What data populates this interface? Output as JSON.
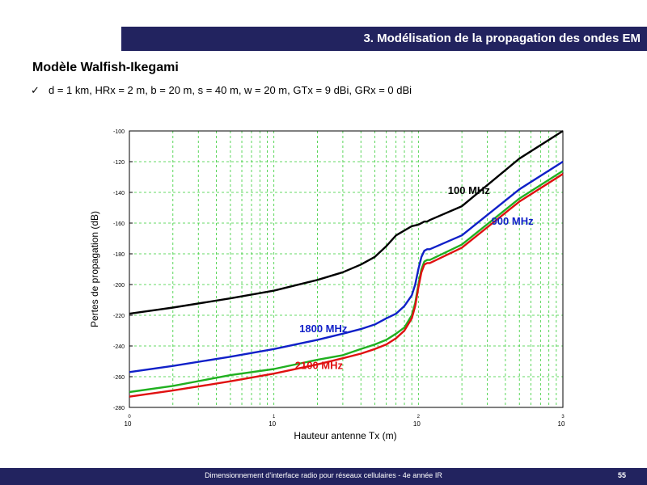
{
  "header": {
    "title": "3. Modélisation de la propagation des ondes EM"
  },
  "section": {
    "title": "Modèle Walfish-Ikegami",
    "bullet": "d = 1 km, HRx = 2 m, b = 20 m, s = 40 m, w = 20 m, GTx = 9 dBi, GRx = 0 dBi"
  },
  "footer": {
    "text": "Dimensionnement d’interface radio pour réseaux cellulaires - 4e année IR",
    "page": "55"
  },
  "chart_data": {
    "type": "line",
    "xlabel": "Hauteur antenne Tx (m)",
    "ylabel": "Pertes de propagation (dB)",
    "xscale": "log",
    "xlim": [
      1,
      1000
    ],
    "ylim": [
      -280,
      -100
    ],
    "grid": true,
    "x_ticks": [
      {
        "value": 1,
        "base": "10",
        "exp": "0"
      },
      {
        "value": 10,
        "base": "10",
        "exp": "1"
      },
      {
        "value": 100,
        "base": "10",
        "exp": "2"
      },
      {
        "value": 1000,
        "base": "10",
        "exp": "3"
      }
    ],
    "y_ticks": [
      -100,
      -120,
      -140,
      -160,
      -180,
      -200,
      -220,
      -240,
      -260,
      -280
    ],
    "series": [
      {
        "name": "100 MHz",
        "color": "#000000",
        "x": [
          1,
          2,
          5,
          10,
          20,
          30,
          40,
          50,
          60,
          70,
          90,
          100,
          105,
          110,
          115,
          120,
          200,
          500,
          1000
        ],
        "y": [
          -219,
          -215,
          -209,
          -204,
          -197,
          -192,
          -187,
          -182,
          -175,
          -168,
          -162,
          -161,
          -160,
          -159,
          -159,
          -158,
          -149,
          -118,
          -100
        ]
      },
      {
        "name": "900 MHz",
        "color": "#1020c8",
        "x": [
          1,
          2,
          5,
          10,
          20,
          30,
          40,
          50,
          60,
          70,
          80,
          90,
          95,
          100,
          105,
          110,
          115,
          120,
          200,
          500,
          1000
        ],
        "y": [
          -257,
          -253,
          -247,
          -242,
          -236,
          -232,
          -229,
          -226,
          -222,
          -219,
          -214,
          -207,
          -200,
          -190,
          -182,
          -178,
          -177,
          -177,
          -168,
          -138,
          -120
        ]
      },
      {
        "name": "1800 MHz",
        "color": "#20b020",
        "x": [
          1,
          2,
          5,
          10,
          20,
          30,
          40,
          50,
          60,
          70,
          80,
          90,
          95,
          100,
          105,
          110,
          115,
          120,
          200,
          500,
          1000
        ],
        "y": [
          -270,
          -266,
          -259,
          -255,
          -249,
          -246,
          -242,
          -239,
          -236,
          -232,
          -228,
          -220,
          -212,
          -200,
          -190,
          -185,
          -184,
          -184,
          -174,
          -144,
          -126
        ]
      },
      {
        "name": "2100 MHz",
        "color": "#e01010",
        "x": [
          1,
          2,
          5,
          10,
          20,
          30,
          40,
          50,
          60,
          70,
          80,
          90,
          95,
          100,
          105,
          110,
          115,
          120,
          200,
          500,
          1000
        ],
        "y": [
          -273,
          -269,
          -263,
          -258,
          -252,
          -248,
          -245,
          -242,
          -239,
          -235,
          -230,
          -222,
          -214,
          -202,
          -192,
          -187,
          -186,
          -186,
          -176,
          -146,
          -128
        ]
      }
    ],
    "annotations": [
      {
        "text": "100 MHz",
        "color": "#000000",
        "x": 160,
        "y": -141
      },
      {
        "text": "900 MHz",
        "color": "#1020c8",
        "x": 320,
        "y": -161
      },
      {
        "text": "1800 MHz",
        "color": "#1020c8",
        "x": 15,
        "y": -231
      },
      {
        "text": "2100 MHz",
        "color": "#e01010",
        "x": 14,
        "y": -255
      }
    ]
  }
}
